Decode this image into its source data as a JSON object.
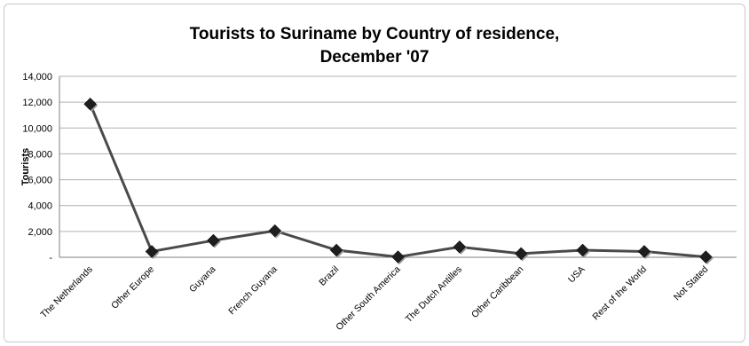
{
  "chart_data": {
    "type": "line",
    "title": [
      "Tourists to Suriname by Country of residence,",
      "December  '07"
    ],
    "xlabel": "",
    "ylabel": "Tourists",
    "ylim": [
      0,
      14000
    ],
    "yticks": [
      0,
      2000,
      4000,
      6000,
      8000,
      10000,
      12000,
      14000
    ],
    "ytick_labels": [
      "-",
      "2,000",
      "4,000",
      "6,000",
      "8,000",
      "10,000",
      "12,000",
      "14,000"
    ],
    "grid": true,
    "legend": "none",
    "categories": [
      "The Netherlands",
      "Other Europe",
      "Guyana",
      "French Guyana",
      "Brazil",
      "Other South America",
      "The Dutch Antilles",
      "Other Caribbean",
      "USA",
      "Rest of the World",
      "Not Stated"
    ],
    "series": [
      {
        "values": [
          11850,
          450,
          1300,
          2050,
          550,
          30,
          800,
          280,
          550,
          450,
          30
        ]
      }
    ],
    "colors": {
      "line": "#4a4a4a",
      "marker": "#1e1e1e",
      "grid": "#b0b0b0",
      "axis": "#808080"
    }
  }
}
